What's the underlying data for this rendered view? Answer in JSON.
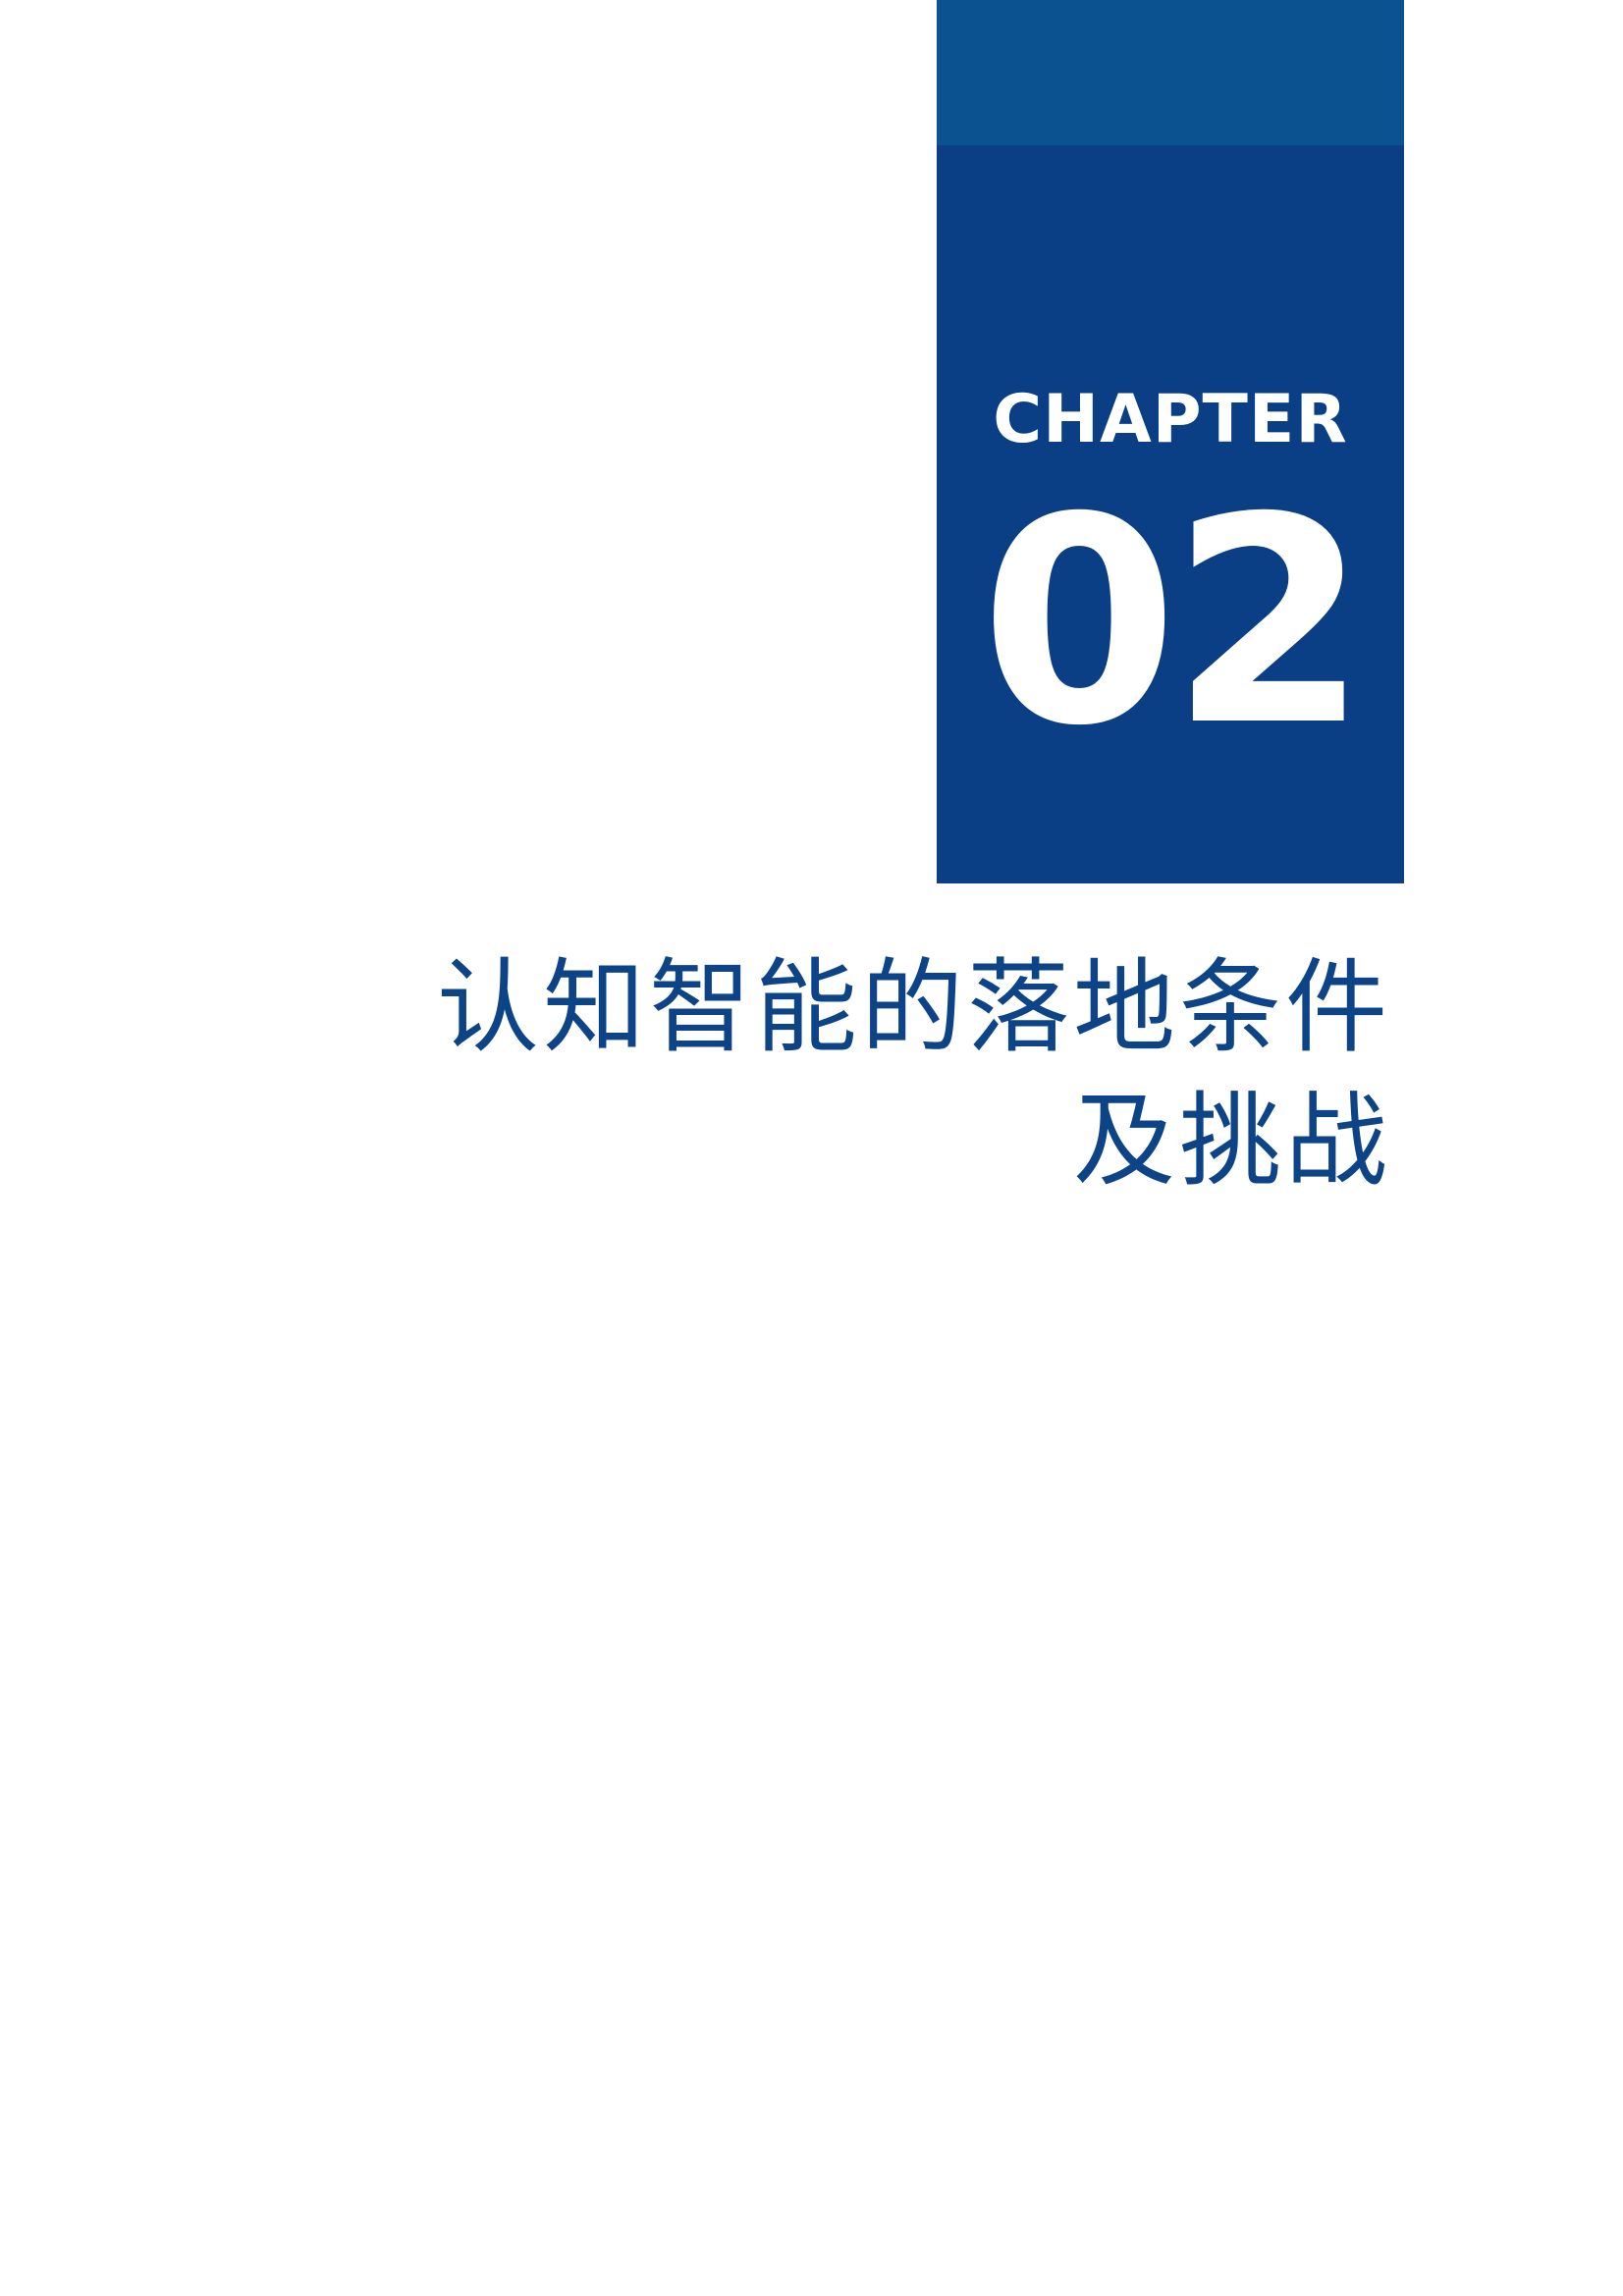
{
  "chapter": {
    "label": "CHAPTER",
    "number": "02"
  },
  "title": {
    "line1": "认知智能的落地条件",
    "line2": "及挑战"
  },
  "colors": {
    "block": "#0a3f85",
    "band": "#0b5290",
    "title": "#0d4488"
  }
}
